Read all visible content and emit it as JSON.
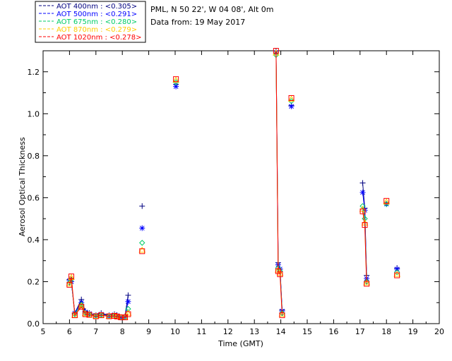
{
  "header": {
    "location": "PML, N 50 22', W 04 08', Alt 0m",
    "date_line": "Data from: 19 May 2017"
  },
  "chart_data": {
    "type": "line",
    "title": "",
    "xlabel": "Time (GMT)",
    "ylabel": "Aerosol Optical Thickness",
    "xlim": [
      5,
      20
    ],
    "ylim": [
      0,
      1.3
    ],
    "xticks": [
      "5",
      "6",
      "7",
      "8",
      "9",
      "10",
      "11",
      "12",
      "13",
      "14",
      "15",
      "16",
      "17",
      "18",
      "19",
      "20"
    ],
    "yticks": [
      "0.0",
      "0.2",
      "0.4",
      "0.6",
      "0.8",
      "1.0",
      "1.2"
    ],
    "grid": false,
    "legend_placement": "top-left",
    "series": [
      {
        "name": "AOT  400nm : <0.305>",
        "color": "#000080",
        "marker": "plus",
        "x": [
          6.0,
          6.07,
          6.2,
          6.45,
          6.6,
          6.75,
          7.0,
          7.2,
          7.5,
          7.7,
          7.8,
          7.95,
          8.1,
          8.22,
          8.75,
          10.03,
          13.82,
          13.9,
          13.97,
          14.05,
          14.4,
          17.1,
          17.18,
          17.25,
          18.0,
          18.4
        ],
        "y": [
          0.21,
          0.2,
          0.05,
          0.115,
          0.06,
          0.05,
          0.04,
          0.05,
          0.04,
          0.045,
          0.04,
          0.03,
          0.035,
          0.135,
          0.56,
          1.14,
          1.3,
          0.29,
          0.26,
          0.065,
          1.04,
          0.67,
          0.55,
          0.23,
          0.57,
          0.265
        ]
      },
      {
        "name": "AOT  500nm : <0.291>",
        "color": "#0000ff",
        "marker": "asterisk",
        "x": [
          6.0,
          6.07,
          6.2,
          6.45,
          6.6,
          6.75,
          7.0,
          7.2,
          7.5,
          7.7,
          7.8,
          7.95,
          8.1,
          8.22,
          8.75,
          10.03,
          13.82,
          13.9,
          13.97,
          14.05,
          14.4,
          17.1,
          17.18,
          17.25,
          18.0,
          18.4
        ],
        "y": [
          0.205,
          0.2,
          0.05,
          0.1,
          0.055,
          0.048,
          0.04,
          0.045,
          0.038,
          0.042,
          0.038,
          0.03,
          0.033,
          0.105,
          0.455,
          1.13,
          1.29,
          0.28,
          0.26,
          0.06,
          1.035,
          0.625,
          0.54,
          0.215,
          0.57,
          0.26
        ]
      },
      {
        "name": "AOT  675nm : <0.280>",
        "color": "#00cc66",
        "marker": "diamond",
        "x": [
          6.0,
          6.07,
          6.2,
          6.45,
          6.6,
          6.75,
          7.0,
          7.2,
          7.5,
          7.7,
          7.8,
          7.95,
          8.1,
          8.22,
          8.75,
          10.03,
          13.82,
          13.9,
          13.97,
          14.05,
          14.4,
          17.1,
          17.18,
          17.25,
          18.0,
          18.4
        ],
        "y": [
          0.195,
          0.21,
          0.045,
          0.09,
          0.05,
          0.045,
          0.038,
          0.042,
          0.036,
          0.04,
          0.036,
          0.03,
          0.031,
          0.07,
          0.385,
          1.15,
          1.28,
          0.265,
          0.25,
          0.05,
          1.06,
          0.56,
          0.5,
          0.2,
          0.57,
          0.245
        ]
      },
      {
        "name": "AOT  870nm : <0.279>",
        "color": "#ffcc00",
        "marker": "triangle",
        "x": [
          6.0,
          6.07,
          6.2,
          6.45,
          6.6,
          6.75,
          7.0,
          7.2,
          7.5,
          7.7,
          7.8,
          7.95,
          8.1,
          8.22,
          8.75,
          10.03,
          13.82,
          13.9,
          13.97,
          14.05,
          14.4,
          17.1,
          17.18,
          17.25,
          18.0,
          18.4
        ],
        "y": [
          0.19,
          0.22,
          0.04,
          0.085,
          0.048,
          0.043,
          0.036,
          0.04,
          0.035,
          0.038,
          0.035,
          0.03,
          0.03,
          0.05,
          0.35,
          1.16,
          1.29,
          0.255,
          0.24,
          0.045,
          1.07,
          0.545,
          0.48,
          0.195,
          0.58,
          0.235
        ]
      },
      {
        "name": "AOT 1020nm : <0.278>",
        "color": "#ff0000",
        "marker": "square",
        "x": [
          6.0,
          6.07,
          6.2,
          6.45,
          6.6,
          6.75,
          7.0,
          7.2,
          7.5,
          7.7,
          7.8,
          7.95,
          8.1,
          8.22,
          8.75,
          10.03,
          13.82,
          13.9,
          13.97,
          14.05,
          14.4,
          17.1,
          17.18,
          17.25,
          18.0,
          18.4
        ],
        "y": [
          0.185,
          0.225,
          0.04,
          0.08,
          0.045,
          0.042,
          0.035,
          0.04,
          0.035,
          0.037,
          0.034,
          0.03,
          0.03,
          0.045,
          0.345,
          1.165,
          1.3,
          0.25,
          0.235,
          0.04,
          1.075,
          0.535,
          0.47,
          0.19,
          0.585,
          0.23
        ]
      }
    ],
    "segments": [
      [
        0,
        13
      ],
      [
        16,
        19
      ],
      [
        21,
        23
      ]
    ]
  }
}
